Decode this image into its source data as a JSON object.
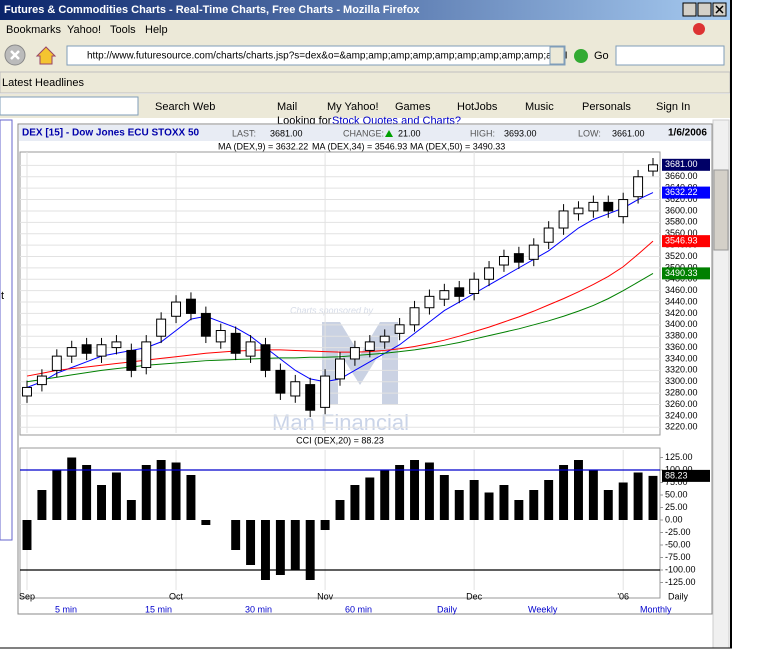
{
  "browser": {
    "window_title": "Futures & Commodities Charts - Real-Time Charts, Free Charts - Mozilla Firefox",
    "menu": [
      "Bookmarks",
      "Yahoo!",
      "Tools",
      "Help"
    ],
    "url": "http://www.futuresource.com/charts/charts.jsp?s=dex&o=&amp;amp;amp;amp;amp;amp;amp;amp;amp;a=DI",
    "go": "Go",
    "bookmark": "Latest Headlines",
    "toolbar": [
      "Search Web",
      "Mail",
      "My Yahoo!",
      "Games",
      "HotJobs",
      "Music",
      "Personals",
      "Sign In"
    ]
  },
  "page": {
    "prompt": "Looking for",
    "prompt_link": "Stock Quotes and Charts?",
    "side_text": "t",
    "sponsor": "Charts sponsored by",
    "sponsor_name": "Man Financial",
    "intervals": [
      "5 min",
      "15 min",
      "30 min",
      "60 min",
      "Daily",
      "Weekly",
      "Monthly"
    ]
  },
  "chart_data": {
    "type": "candlestick",
    "title": "DEX [15] - Dow Jones ECU STOXX 50",
    "stats": [
      {
        "label": "LAST:",
        "value": "3681.00"
      },
      {
        "label": "CHANGE:",
        "value": "21.00"
      },
      {
        "label": "HIGH:",
        "value": "3693.00"
      },
      {
        "label": "LOW:",
        "value": "3661.00"
      }
    ],
    "date": "1/6/2006",
    "period_label": "Daily",
    "categories": [
      "Sep",
      null,
      null,
      null,
      null,
      null,
      null,
      null,
      null,
      null,
      "Oct",
      null,
      null,
      null,
      null,
      null,
      null,
      null,
      null,
      null,
      "Nov",
      null,
      null,
      null,
      null,
      null,
      null,
      null,
      null,
      null,
      "Dec",
      null,
      null,
      null,
      null,
      null,
      null,
      null,
      null,
      null,
      "'06",
      null,
      null
    ],
    "open": [
      3275,
      3295,
      3320,
      3345,
      3365,
      3345,
      3360,
      3355,
      3325,
      3380,
      3415,
      3445,
      3420,
      3370,
      3385,
      3345,
      3365,
      3320,
      3275,
      3295,
      3255,
      3305,
      3340,
      3355,
      3370,
      3385,
      3400,
      3430,
      3445,
      3465,
      3455,
      3480,
      3505,
      3525,
      3515,
      3545,
      3570,
      3595,
      3600,
      3615,
      3590,
      3625,
      3670
    ],
    "high": [
      3302,
      3322,
      3357,
      3372,
      3377,
      3377,
      3382,
      3367,
      3382,
      3422,
      3452,
      3457,
      3432,
      3402,
      3397,
      3382,
      3377,
      3332,
      3312,
      3307,
      3322,
      3352,
      3372,
      3382,
      3392,
      3412,
      3442,
      3462,
      3472,
      3477,
      3492,
      3512,
      3532,
      3537,
      3552,
      3582,
      3612,
      3617,
      3627,
      3627,
      3632,
      3672,
      3693
    ],
    "low": [
      3263,
      3283,
      3308,
      3333,
      3338,
      3333,
      3348,
      3308,
      3313,
      3368,
      3403,
      3408,
      3368,
      3358,
      3338,
      3333,
      3308,
      3268,
      3263,
      3238,
      3243,
      3293,
      3328,
      3343,
      3358,
      3373,
      3388,
      3418,
      3433,
      3438,
      3443,
      3468,
      3493,
      3498,
      3503,
      3533,
      3558,
      3583,
      3588,
      3588,
      3578,
      3613,
      3661
    ],
    "close": [
      3290,
      3310,
      3345,
      3360,
      3350,
      3365,
      3370,
      3320,
      3370,
      3410,
      3440,
      3420,
      3380,
      3390,
      3350,
      3370,
      3320,
      3280,
      3300,
      3250,
      3310,
      3340,
      3360,
      3370,
      3380,
      3400,
      3430,
      3450,
      3460,
      3450,
      3480,
      3500,
      3520,
      3510,
      3540,
      3570,
      3600,
      3605,
      3615,
      3600,
      3620,
      3660,
      3681
    ],
    "series": [
      {
        "name": "MA (DEX,9) = 3632.22",
        "color": "#0000ff",
        "values": [
          3290,
          3300,
          3315,
          3325,
          3335,
          3345,
          3350,
          3355,
          3360,
          3370,
          3390,
          3410,
          3415,
          3405,
          3395,
          3380,
          3360,
          3340,
          3320,
          3305,
          3300,
          3305,
          3320,
          3335,
          3350,
          3365,
          3385,
          3405,
          3425,
          3440,
          3455,
          3470,
          3485,
          3500,
          3515,
          3530,
          3550,
          3570,
          3585,
          3595,
          3605,
          3620,
          3632.22
        ]
      },
      {
        "name": "MA (DEX,34) = 3546.93",
        "color": "#ff0000",
        "values": [
          3310,
          3315,
          3320,
          3323,
          3326,
          3329,
          3332,
          3335,
          3338,
          3341,
          3344,
          3347,
          3350,
          3352,
          3354,
          3355,
          3356,
          3356,
          3355,
          3354,
          3353,
          3352,
          3352,
          3353,
          3355,
          3358,
          3362,
          3367,
          3373,
          3380,
          3388,
          3396,
          3405,
          3414,
          3424,
          3435,
          3446,
          3458,
          3471,
          3485,
          3502,
          3524,
          3546.93
        ]
      },
      {
        "name": "MA (DEX,50) = 3490.33",
        "color": "#008000",
        "values": [
          3300,
          3304,
          3308,
          3312,
          3316,
          3320,
          3323,
          3326,
          3329,
          3331,
          3333,
          3335,
          3337,
          3338,
          3339,
          3340,
          3341,
          3342,
          3342,
          3343,
          3343,
          3344,
          3346,
          3348,
          3350,
          3353,
          3356,
          3360,
          3364,
          3369,
          3375,
          3381,
          3387,
          3393,
          3400,
          3407,
          3415,
          3424,
          3434,
          3446,
          3460,
          3475,
          3490.33
        ]
      }
    ],
    "badges": [
      {
        "value": 3681,
        "label": "3681.00",
        "color": "#000066"
      },
      {
        "value": 3632.22,
        "label": "3632.22",
        "color": "#0000ff"
      },
      {
        "value": 3546.93,
        "label": "3546.93",
        "color": "#ff0000"
      },
      {
        "value": 3490.33,
        "label": "3490.33",
        "color": "#008000"
      }
    ],
    "ylim": [
      3210,
      3700
    ],
    "yticks": [
      {
        "value": 3680,
        "label": "3680.00"
      },
      {
        "value": 3660,
        "label": "3660.00"
      },
      {
        "value": 3640,
        "label": "3640.00"
      },
      {
        "value": 3620,
        "label": "3620.00"
      },
      {
        "value": 3600,
        "label": "3600.00"
      },
      {
        "value": 3580,
        "label": "3580.00"
      },
      {
        "value": 3560,
        "label": "3560.00"
      },
      {
        "value": 3540,
        "label": "3540.00"
      },
      {
        "value": 3520,
        "label": "3520.00"
      },
      {
        "value": 3500,
        "label": "3500.00"
      },
      {
        "value": 3480,
        "label": "3480.00"
      },
      {
        "value": 3460,
        "label": "3460.00"
      },
      {
        "value": 3440,
        "label": "3440.00"
      },
      {
        "value": 3420,
        "label": "3420.00"
      },
      {
        "value": 3400,
        "label": "3400.00"
      },
      {
        "value": 3380,
        "label": "3380.00"
      },
      {
        "value": 3360,
        "label": "3360.00"
      },
      {
        "value": 3340,
        "label": "3340.00"
      },
      {
        "value": 3320,
        "label": "3320.00"
      },
      {
        "value": 3300,
        "label": "3300.00"
      },
      {
        "value": 3280,
        "label": "3280.00"
      },
      {
        "value": 3260,
        "label": "3260.00"
      },
      {
        "value": 3240,
        "label": "3240.00"
      },
      {
        "value": 3220,
        "label": "3220.00"
      }
    ],
    "grid": true,
    "cci": {
      "title": "CCI (DEX,20) = 88.23",
      "values": [
        -60,
        60,
        100,
        125,
        110,
        70,
        95,
        40,
        110,
        120,
        115,
        90,
        -10,
        0,
        -60,
        -90,
        -120,
        -110,
        -100,
        -120,
        -20,
        40,
        70,
        85,
        100,
        110,
        120,
        115,
        90,
        60,
        80,
        55,
        70,
        40,
        60,
        80,
        110,
        120,
        100,
        60,
        75,
        95,
        88.23
      ],
      "color": "#000000",
      "badge": {
        "value": 88.23,
        "label": "88.23",
        "color": "#000000"
      },
      "ylim": [
        -140,
        140
      ],
      "yticks": [
        {
          "value": 125,
          "label": "125.00"
        },
        {
          "value": 100,
          "label": "100.00"
        },
        {
          "value": 75,
          "label": "75.00"
        },
        {
          "value": 50,
          "label": "50.00"
        },
        {
          "value": 25,
          "label": "25.00"
        },
        {
          "value": 0,
          "label": "0.00"
        },
        {
          "value": -25,
          "label": "-25.00"
        },
        {
          "value": -50,
          "label": "-50.00"
        },
        {
          "value": -75,
          "label": "-75.00"
        },
        {
          "value": -100,
          "label": "-100.00"
        },
        {
          "value": -125,
          "label": "-125.00"
        }
      ],
      "reference_lines": [
        {
          "value": 100,
          "color": "#0000cc"
        },
        {
          "value": -100,
          "color": "#000000"
        }
      ]
    }
  }
}
